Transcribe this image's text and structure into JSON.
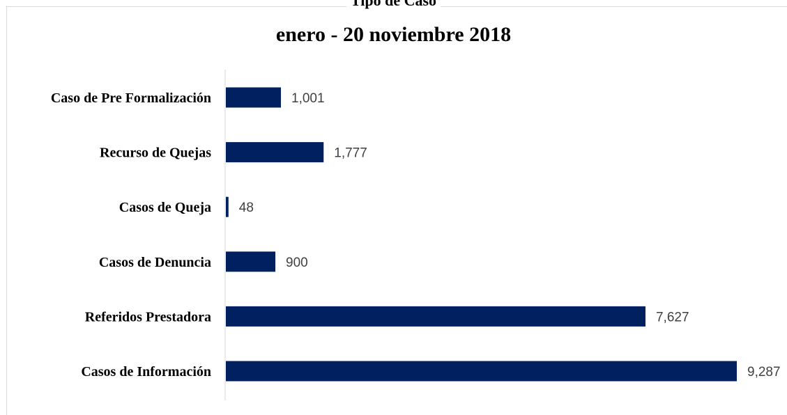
{
  "chart_data": {
    "type": "bar",
    "orientation": "horizontal",
    "title": "Tipo de Caso",
    "subtitle": "enero - 20 noviembre 2018",
    "categories": [
      "Caso de Pre Formalización",
      "Recurso de Quejas",
      "Casos de Queja",
      "Casos de Denuncia",
      "Referidos Prestadora",
      "Casos de Información"
    ],
    "values": [
      1001,
      1777,
      48,
      900,
      7627,
      9287
    ],
    "value_labels": [
      "1,001",
      "1,777",
      "48",
      "900",
      "7,627",
      "9,287"
    ],
    "xlim": [
      0,
      9287
    ],
    "grid": false,
    "legend": "none",
    "bar_color": "#002060"
  }
}
